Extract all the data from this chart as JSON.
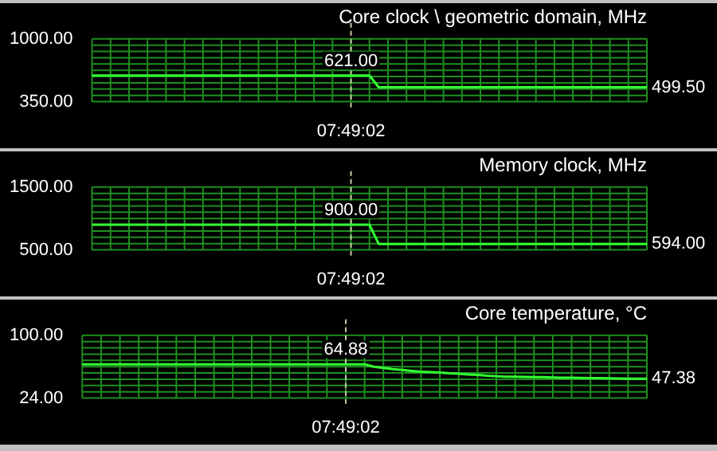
{
  "chart_data": [
    {
      "type": "line",
      "title": "Core clock \\ geometric domain, MHz",
      "categories": [
        null,
        null,
        null,
        null,
        null,
        null,
        null,
        null,
        null,
        null,
        null,
        null,
        null,
        null,
        null,
        null,
        null,
        null,
        null,
        null,
        null,
        null,
        null,
        null,
        null,
        null,
        null,
        null,
        "07:49:02",
        null,
        null,
        null,
        null,
        null,
        null,
        null,
        null,
        null,
        null,
        null,
        null,
        null,
        null,
        null,
        null,
        null,
        null,
        null,
        null,
        null,
        null,
        null,
        null,
        null,
        null,
        null,
        null,
        null,
        null,
        null,
        null
      ],
      "values": [
        621,
        621,
        621,
        621,
        621,
        621,
        621,
        621,
        621,
        621,
        621,
        621,
        621,
        621,
        621,
        621,
        621,
        621,
        621,
        621,
        621,
        621,
        621,
        621,
        621,
        621,
        621,
        621,
        621,
        621,
        621,
        499.5,
        499.5,
        499.5,
        499.5,
        499.5,
        499.5,
        499.5,
        499.5,
        499.5,
        499.5,
        499.5,
        499.5,
        499.5,
        499.5,
        499.5,
        499.5,
        499.5,
        499.5,
        499.5,
        499.5,
        499.5,
        499.5,
        499.5,
        499.5,
        499.5,
        499.5,
        499.5,
        499.5,
        499.5,
        499.5
      ],
      "value_labels": [
        null,
        null,
        null,
        null,
        null,
        null,
        null,
        null,
        null,
        null,
        null,
        null,
        null,
        null,
        null,
        null,
        null,
        null,
        null,
        null,
        null,
        null,
        null,
        null,
        null,
        null,
        null,
        null,
        "621.00",
        null,
        null,
        null,
        null,
        null,
        null,
        null,
        null,
        null,
        null,
        null,
        null,
        null,
        null,
        null,
        null,
        null,
        null,
        null,
        null,
        null,
        null,
        null,
        null,
        null,
        null,
        null,
        null,
        null,
        null,
        null,
        "499.50"
      ],
      "color": "#33ff33",
      "ylim": [
        350,
        1000
      ],
      "yticks": [
        {
          "value": 350,
          "label": "350.00"
        },
        {
          "value": 1000,
          "label": "1000.00"
        }
      ],
      "grid": true,
      "ref_lines": [
        {
          "axis": "x",
          "value": "07:49:02",
          "color": "#c8c8a8",
          "line_style": "dashed"
        }
      ]
    },
    {
      "type": "line",
      "title": "Memory clock, MHz",
      "categories": [
        null,
        null,
        null,
        null,
        null,
        null,
        null,
        null,
        null,
        null,
        null,
        null,
        null,
        null,
        null,
        null,
        null,
        null,
        null,
        null,
        null,
        null,
        null,
        null,
        null,
        null,
        null,
        null,
        "07:49:02",
        null,
        null,
        null,
        null,
        null,
        null,
        null,
        null,
        null,
        null,
        null,
        null,
        null,
        null,
        null,
        null,
        null,
        null,
        null,
        null,
        null,
        null,
        null,
        null,
        null,
        null,
        null,
        null,
        null,
        null,
        null,
        null
      ],
      "values": [
        900,
        900,
        900,
        900,
        900,
        900,
        900,
        900,
        900,
        900,
        900,
        900,
        900,
        900,
        900,
        900,
        900,
        900,
        900,
        900,
        900,
        900,
        900,
        900,
        900,
        900,
        900,
        900,
        900,
        900,
        900,
        594,
        594,
        594,
        594,
        594,
        594,
        594,
        594,
        594,
        594,
        594,
        594,
        594,
        594,
        594,
        594,
        594,
        594,
        594,
        594,
        594,
        594,
        594,
        594,
        594,
        594,
        594,
        594,
        594,
        594
      ],
      "value_labels": [
        null,
        null,
        null,
        null,
        null,
        null,
        null,
        null,
        null,
        null,
        null,
        null,
        null,
        null,
        null,
        null,
        null,
        null,
        null,
        null,
        null,
        null,
        null,
        null,
        null,
        null,
        null,
        null,
        "900.00",
        null,
        null,
        null,
        null,
        null,
        null,
        null,
        null,
        null,
        null,
        null,
        null,
        null,
        null,
        null,
        null,
        null,
        null,
        null,
        null,
        null,
        null,
        null,
        null,
        null,
        null,
        null,
        null,
        null,
        null,
        null,
        "594.00"
      ],
      "color": "#33ff33",
      "ylim": [
        500,
        1500
      ],
      "yticks": [
        {
          "value": 500,
          "label": "500.00"
        },
        {
          "value": 1500,
          "label": "1500.00"
        }
      ],
      "grid": true,
      "ref_lines": [
        {
          "axis": "x",
          "value": "07:49:02",
          "color": "#c8c8a8",
          "line_style": "dashed"
        }
      ]
    },
    {
      "type": "line",
      "title": "Core temperature, °C",
      "categories": [
        null,
        null,
        null,
        null,
        null,
        null,
        null,
        null,
        null,
        null,
        null,
        null,
        null,
        null,
        null,
        null,
        null,
        null,
        null,
        null,
        null,
        null,
        null,
        null,
        null,
        null,
        null,
        null,
        "07:49:02",
        null,
        null,
        null,
        null,
        null,
        null,
        null,
        null,
        null,
        null,
        null,
        null,
        null,
        null,
        null,
        null,
        null,
        null,
        null,
        null,
        null,
        null,
        null,
        null,
        null,
        null,
        null,
        null,
        null,
        null,
        null,
        null
      ],
      "values": [
        64.88,
        64.88,
        64.88,
        64.88,
        64.88,
        64.88,
        64.88,
        64.88,
        64.88,
        64.88,
        64.88,
        64.88,
        64.88,
        64.88,
        64.88,
        64.88,
        64.88,
        64.88,
        64.88,
        64.88,
        64.88,
        64.88,
        64.88,
        64.88,
        64.88,
        64.88,
        64.88,
        64.88,
        64.88,
        64.88,
        64.88,
        62,
        60.5,
        59,
        58,
        57,
        56,
        55.5,
        55,
        54,
        53.5,
        52.5,
        52,
        51,
        50.5,
        50,
        49.8,
        49.6,
        49.5,
        49.3,
        49,
        48.8,
        48.6,
        48.5,
        48.3,
        48.1,
        48,
        47.8,
        47.6,
        47.5,
        47.38
      ],
      "value_labels": [
        null,
        null,
        null,
        null,
        null,
        null,
        null,
        null,
        null,
        null,
        null,
        null,
        null,
        null,
        null,
        null,
        null,
        null,
        null,
        null,
        null,
        null,
        null,
        null,
        null,
        null,
        null,
        null,
        "64.88",
        null,
        null,
        null,
        null,
        null,
        null,
        null,
        null,
        null,
        null,
        null,
        null,
        null,
        null,
        null,
        null,
        null,
        null,
        null,
        null,
        null,
        null,
        null,
        null,
        null,
        null,
        null,
        null,
        null,
        null,
        null,
        "47.38"
      ],
      "color": "#33ff33",
      "ylim": [
        24,
        100
      ],
      "yticks": [
        {
          "value": 24,
          "label": "24.00"
        },
        {
          "value": 100,
          "label": "100.00"
        }
      ],
      "grid": true,
      "ref_lines": [
        {
          "axis": "x",
          "value": "07:49:02",
          "color": "#c8c8a8",
          "line_style": "dashed"
        }
      ]
    }
  ]
}
